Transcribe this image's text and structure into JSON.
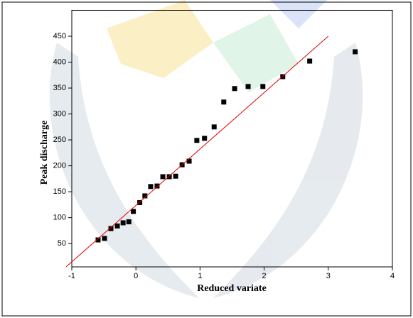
{
  "chart_data": {
    "type": "scatter",
    "x_label": "Reduced variate",
    "y_label": "Peak discharge",
    "xlim": [
      -1,
      4
    ],
    "ylim": [
      5,
      500
    ],
    "xticks": [
      -1,
      0,
      1,
      2,
      3,
      4
    ],
    "yticks": [
      50,
      100,
      150,
      200,
      250,
      300,
      350,
      400,
      450
    ],
    "series": [
      {
        "color": "#000000",
        "mode": "markers",
        "x": [
          -0.59,
          -0.49,
          -0.39,
          -0.29,
          -0.2,
          -0.11,
          -0.04,
          0.06,
          0.14,
          0.23,
          0.33,
          0.42,
          0.52,
          0.62,
          0.72,
          0.83,
          0.95,
          1.07,
          1.22,
          1.37,
          1.54,
          1.75,
          1.98,
          2.29,
          2.71,
          3.42
        ],
        "values": [
          57,
          60,
          79,
          84,
          90,
          92,
          112,
          129,
          142,
          160,
          161,
          179,
          179,
          180,
          202,
          209,
          249,
          253,
          275,
          323,
          349,
          353,
          353,
          372,
          402,
          420
        ]
      },
      {
        "color": "#e00000",
        "mode": "line",
        "x": [
          -1.09,
          3.0
        ],
        "values": [
          5,
          450
        ]
      }
    ]
  }
}
